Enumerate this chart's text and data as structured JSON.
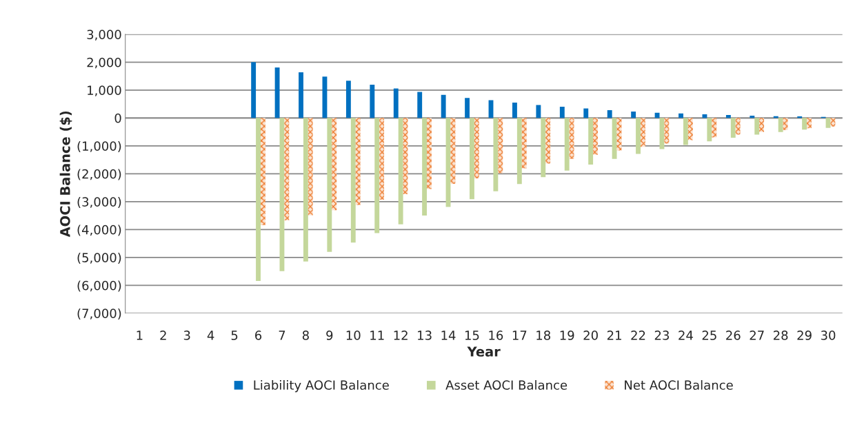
{
  "chart_data": {
    "type": "bar",
    "xlabel": "Year",
    "ylabel": "AOCI Balance ($)",
    "categories": [
      "1",
      "2",
      "3",
      "4",
      "5",
      "6",
      "7",
      "8",
      "9",
      "10",
      "11",
      "12",
      "13",
      "14",
      "15",
      "16",
      "17",
      "18",
      "19",
      "20",
      "21",
      "22",
      "23",
      "24",
      "25",
      "26",
      "27",
      "28",
      "29",
      "30"
    ],
    "series": [
      {
        "name": "Liability AOCI Balance",
        "color": "#0070c0",
        "values": [
          0,
          0,
          0,
          0,
          0,
          2000,
          1810,
          1635,
          1485,
          1335,
          1195,
          1060,
          935,
          830,
          720,
          640,
          550,
          465,
          405,
          340,
          280,
          230,
          190,
          165,
          130,
          105,
          85,
          65,
          55,
          40
        ]
      },
      {
        "name": "Asset AOCI Balance",
        "color": "#c4d79b",
        "values": [
          0,
          0,
          0,
          0,
          0,
          -5845,
          -5490,
          -5150,
          -4800,
          -4470,
          -4130,
          -3815,
          -3500,
          -3190,
          -2910,
          -2630,
          -2370,
          -2120,
          -1885,
          -1670,
          -1470,
          -1290,
          -1115,
          -965,
          -835,
          -710,
          -600,
          -505,
          -420,
          -355
        ]
      },
      {
        "name": "Net AOCI Balance",
        "color": "#ed7d31",
        "values": [
          0,
          0,
          0,
          0,
          0,
          -3845,
          -3670,
          -3490,
          -3310,
          -3120,
          -2930,
          -2735,
          -2545,
          -2365,
          -2165,
          -1980,
          -1810,
          -1635,
          -1470,
          -1320,
          -1165,
          -1035,
          -915,
          -795,
          -695,
          -595,
          -505,
          -430,
          -370,
          -305
        ]
      }
    ],
    "ylim": [
      -7000,
      3000
    ],
    "yticks": [
      {
        "value": -7000,
        "label": "(7,000)"
      },
      {
        "value": -6000,
        "label": "(6,000)"
      },
      {
        "value": -5000,
        "label": "(5,000)"
      },
      {
        "value": -4000,
        "label": "(4,000)"
      },
      {
        "value": -3000,
        "label": "(3,000)"
      },
      {
        "value": -2000,
        "label": "(2,000)"
      },
      {
        "value": -1000,
        "label": "(1,000)"
      },
      0,
      {
        "value": 1000,
        "label": "1,000"
      },
      {
        "value": 2000,
        "label": "2,000"
      },
      {
        "value": 3000,
        "label": "3,000"
      }
    ],
    "grid": "y",
    "legend": "bottom"
  }
}
